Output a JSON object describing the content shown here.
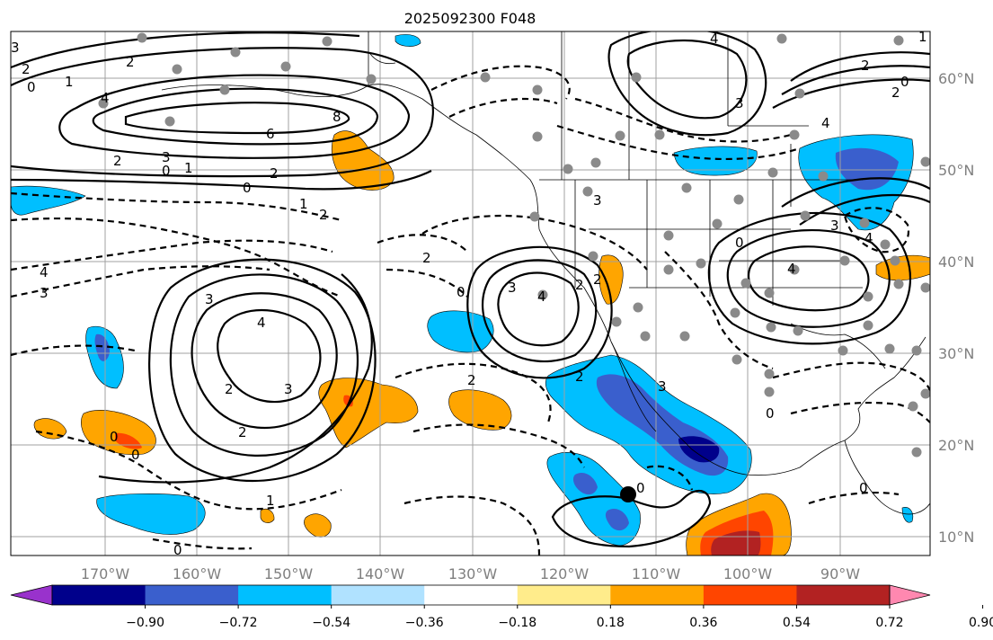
{
  "title": "2025092300 F048",
  "lon_labels": [
    "170°W",
    "160°W",
    "150°W",
    "140°W",
    "130°W",
    "120°W",
    "110°W",
    "100°W",
    "90°W"
  ],
  "lat_labels": [
    "60°N",
    "50°N",
    "40°N",
    "30°N",
    "20°N",
    "10°N"
  ],
  "colorbar": {
    "ticks": [
      "−0.90",
      "−0.72",
      "−0.54",
      "−0.36",
      "−0.18",
      "0.18",
      "0.36",
      "0.54",
      "0.72",
      "0.90"
    ],
    "colors": [
      "#9932cc",
      "#00008b",
      "#3a5fcd",
      "#00bfff",
      "#b0e2ff",
      "#ffffff",
      "#ffec8b",
      "#ffa500",
      "#ff4500",
      "#b22222",
      "#ff88b0"
    ]
  },
  "contour_labels": [
    "3",
    "2",
    "0",
    "1",
    "4",
    "2",
    "8",
    "6",
    "2",
    "3",
    "0",
    "1",
    "2",
    "0",
    "1",
    "2",
    "4",
    "3",
    "4",
    "2",
    "3",
    "2",
    "0",
    "3",
    "2",
    "2",
    "1",
    "0",
    "0",
    "4",
    "3",
    "2",
    "2",
    "0",
    "3",
    "2",
    "0",
    "4",
    "0",
    "4",
    "3",
    "2",
    "0",
    "1",
    "4",
    "3",
    "0",
    "3",
    "4",
    "2",
    "0"
  ]
}
